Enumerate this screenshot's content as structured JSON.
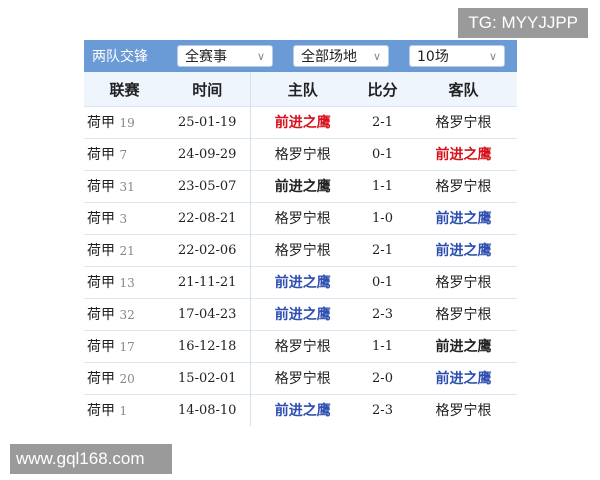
{
  "watermarks": {
    "top": "TG: MYYJJPP",
    "bottom": "www.gql168.com"
  },
  "header": {
    "title": "两队交锋",
    "filters": [
      {
        "value": "全赛事"
      },
      {
        "value": "全部场地"
      },
      {
        "value": "10场"
      }
    ]
  },
  "columns": [
    "联赛",
    "时间",
    "主队",
    "比分",
    "客队"
  ],
  "colors": {
    "win_highlight": "#d8101a",
    "team_highlight": "#2c4fb0",
    "header_bar": "#6b9bd6"
  },
  "rows": [
    {
      "league": "荷甲",
      "round": "19",
      "date": "25-01-19",
      "home": "前进之鹰",
      "score": "2-1",
      "away": "格罗宁根",
      "home_style": "red",
      "away_style": ""
    },
    {
      "league": "荷甲",
      "round": "7",
      "date": "24-09-29",
      "home": "格罗宁根",
      "score": "0-1",
      "away": "前进之鹰",
      "home_style": "",
      "away_style": "red"
    },
    {
      "league": "荷甲",
      "round": "31",
      "date": "23-05-07",
      "home": "前进之鹰",
      "score": "1-1",
      "away": "格罗宁根",
      "home_style": "bold",
      "away_style": ""
    },
    {
      "league": "荷甲",
      "round": "3",
      "date": "22-08-21",
      "home": "格罗宁根",
      "score": "1-0",
      "away": "前进之鹰",
      "home_style": "",
      "away_style": "blue"
    },
    {
      "league": "荷甲",
      "round": "21",
      "date": "22-02-06",
      "home": "格罗宁根",
      "score": "2-1",
      "away": "前进之鹰",
      "home_style": "",
      "away_style": "blue"
    },
    {
      "league": "荷甲",
      "round": "13",
      "date": "21-11-21",
      "home": "前进之鹰",
      "score": "0-1",
      "away": "格罗宁根",
      "home_style": "blue",
      "away_style": ""
    },
    {
      "league": "荷甲",
      "round": "32",
      "date": "17-04-23",
      "home": "前进之鹰",
      "score": "2-3",
      "away": "格罗宁根",
      "home_style": "blue",
      "away_style": ""
    },
    {
      "league": "荷甲",
      "round": "17",
      "date": "16-12-18",
      "home": "格罗宁根",
      "score": "1-1",
      "away": "前进之鹰",
      "home_style": "",
      "away_style": "bold"
    },
    {
      "league": "荷甲",
      "round": "20",
      "date": "15-02-01",
      "home": "格罗宁根",
      "score": "2-0",
      "away": "前进之鹰",
      "home_style": "",
      "away_style": "blue"
    },
    {
      "league": "荷甲",
      "round": "1",
      "date": "14-08-10",
      "home": "前进之鹰",
      "score": "2-3",
      "away": "格罗宁根",
      "home_style": "blue",
      "away_style": ""
    }
  ]
}
